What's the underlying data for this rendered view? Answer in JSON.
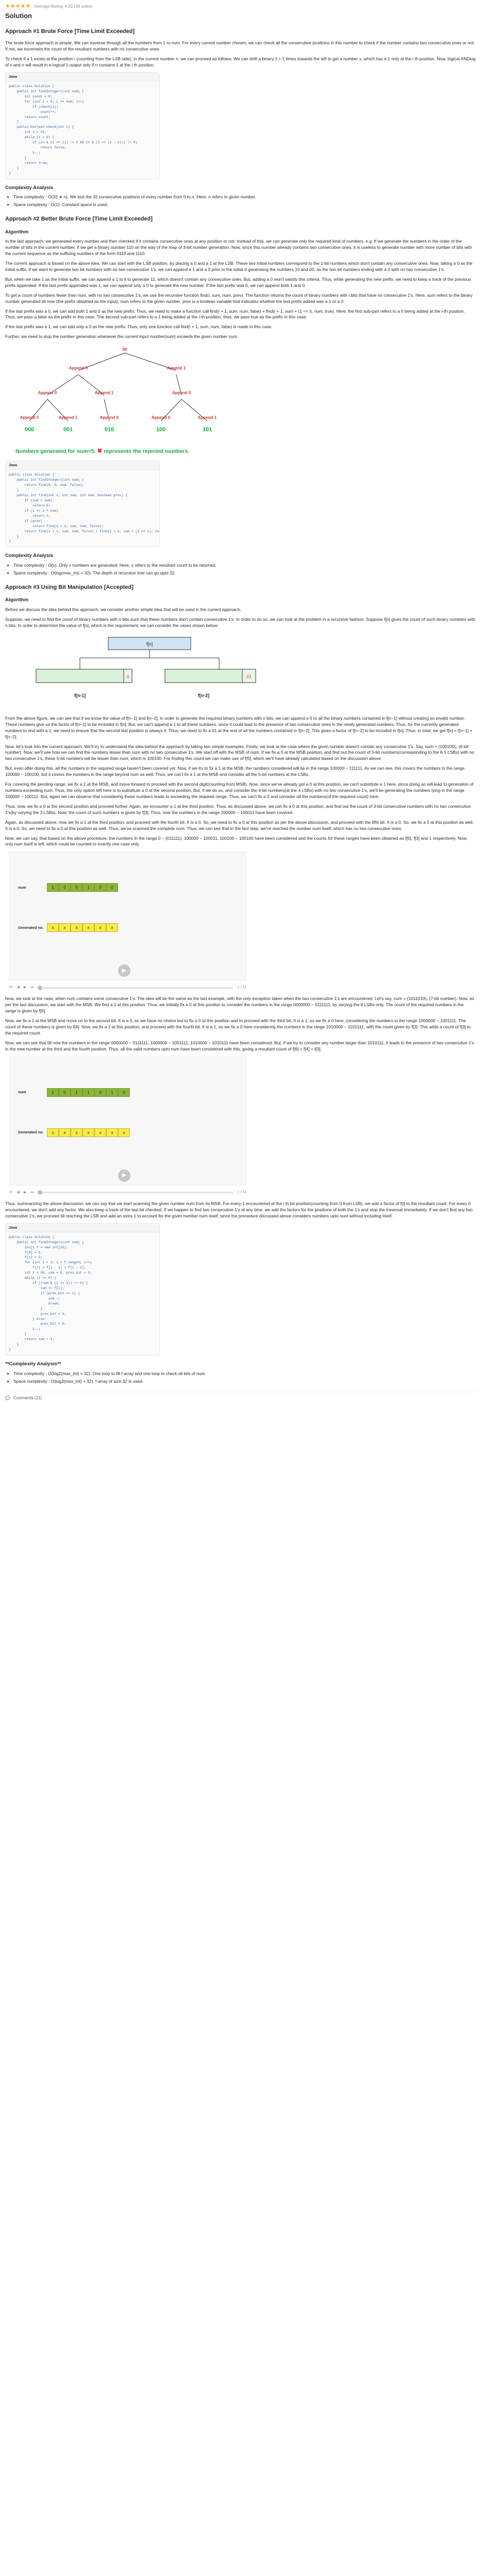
{
  "rating": {
    "stars": "★★★★★",
    "avg": "Average Rating: 4.82 (39 votes)"
  },
  "page_title": "Solution",
  "a1": {
    "title": "Approach #1 Brute Force [Time Limit Exceeded]",
    "p1": "The brute force approach is simple. We can traverse through all the numbers from 1 to num. For every current number chosen, we can check all the consecutive positions in this number to check if the number contains two consecutive ones or not. If not, we increment the count of the resultant numbers with no consecutive ones.",
    "p2": "To check if a 1 exists at the position i (counting from the LSB side), in the current number n, we can proceed as follows. We can shift a binary 1 i−1 times towards the left to get a number x, which has a 1 only at the i th position. Now, logical ANDing of x and n will result in a logical 1 output only if n contains 1 at the i th position.",
    "tabs": [
      "Java"
    ],
    "code": "public class Solution {\n    public int findIntegers(int num) {\n        int count = 0;\n        for (int i = 0; i <= num; i++)\n            if (check(i))\n                count++;\n        return count;\n    }\n    public boolean check(int n) {\n        int i = 31;\n        while (i > 0) {\n            if ((n & (1 << i)) != 0 && (n & (1 << (i - 1))) != 0)\n                return false;\n            i--;\n        }\n        return true;\n    }\n}",
    "cx_title": "Complexity Analysis",
    "cx": [
      "Time complexity : O(32 ∗ n). We test the 32 consecutive positions of every number from 0 to n. Here, n refers to given number.",
      "Space complexity : O(1). Constant space is used."
    ]
  },
  "a2": {
    "title": "Approach #2 Better Brute Force [Time Limit Exceeded]",
    "alg": "Algorithm",
    "p1": "In the last approach, we generated every number and then checked if it contains consecutive ones at any position or not. Instead of this, we can generate only the required kind of numbers. e.g. If we generate the numbers in the order of the number of bits in the current number, if we get a binary number 110 on the way of the map of 3-bit number generation. Now, since this number already contains two consecutive ones, it is useless to generate number with more number of bits with the current sequence as the suffixing numbers of the form 0110 and 1110.",
    "p2": "The current approach is based on the above idea. We can start with the LSB position, by placing a 0 and a 1 at the LSB. These two initial numbers correspond to the 1-bit numbers which don't contain any consecutive ones. Now, taking a 0 as the initial suffix, if we want to generate two bit numbers with no two consecutive 1's, we can append a 1 and a 0 prior to the initial 0 generating the numbers 10 and 00, as the two bit numbers ending with a 0 with no two consecutive 1's.",
    "p3": "But, when we take 1 as the initial suffix, we can append a 1 to it to generate 11, which doesn't contain any consecutive ones. But, adding a 0 won't satisfy this criteria. Thus, while generating the new prefix, we need to keep a track of the previous prefix appended. If the last prefix appended was 1, we can append only a 0 to generate the new number. If the last prefix was 0, we can append both 1 and 0.",
    "p4": "To get a count of numbers fewer than num, with no two consecutive 1's, we use the recursive function find(i, sum, num, prev). The function returns the count of binary numbers with i bits that have no consecutive 1's. Here, sum refers to the binary number generated till now (the prefix obtained as the input), num refers to the given number. prev is a boolean variable that indicates whether the last prefix added was a 1 or a 0.",
    "p5": "If the last prefix was a 0, we can add both 1 and 0 as the new prefix. Thus, we need to make a function call find(i + 1, sum, num, false) + find(i + 1, sum + (1 << i), num, true). Here, the first sub-part refers to a 0 being added at the i-th position. Thus, we pass a false as the prefix in this case. The second sub-part refers to a 1 being added at the i-th position, thus, we pass true as the prefix in this case.",
    "p6": "If the last prefix was a 1, we can add only a 0 as the new prefix. Thus, only one function call find(i + 1, sum, num, false) is made in this case.",
    "p7": "Further, we need to stop the number generation whenever the current input number(sum) exceeds the given number num.",
    "tree": {
      "root": "00",
      "l1": [
        "Append 0",
        "Append 1"
      ],
      "l2": [
        "Append 0",
        "Append 1",
        "Append 0"
      ],
      "l3": [
        "Append 0",
        "Append 1",
        "Append 0",
        "Append 0",
        "Append 1"
      ],
      "leaves": [
        "000",
        "001",
        "010",
        "100",
        "101"
      ]
    },
    "caption": "Numbers generated for num=5.",
    "caption_mark": "✖",
    "caption_tail": "represents the rejected numbers.",
    "tabs": [
      "Java"
    ],
    "code": "public class Solution {\n    public int findIntegers(int num) {\n        return find(0, 0, num, false);\n    }\n    public int find(int i, int sum, int num, boolean prev) {\n        if (sum > num)\n            return 0;\n        if (1 << i > num)\n            return 1;\n        if (prev)\n            return find(i + 1, sum, num, false);\n        return find(i + 1, sum, num, false) + find(i + 1, sum + (1 << i), num, true);\n    }\n}",
    "cx_title": "Complexity Analysis",
    "cx": [
      "Time complexity : O(x). Only x numbers are generated. Here, x refers to the resultant count to be returned.",
      "Space complexity : O(log(max_int) = 32). The depth of recursion tree can go upto 32."
    ]
  },
  "a3": {
    "title": "Approach #3 Using Bit Manipulation [Accepted]",
    "alg": "Algorithm",
    "p1": "Before we discuss the idea behind this approach, we consider another simple idea that will be used in the current approach.",
    "p2": "Suppose, we need to find the count of binary numbers with n bits such that these numbers don't contain consecutive 1's. In order to do so, we can look at the problem in a recursive fashion. Suppose f[n] gives the count of such binary numbers with n bits. In order to determine the value of f[n], which is the requirement, we can consider the cases shown below:",
    "split": {
      "top": "f[n]",
      "left": "f[n-1]",
      "right": "f[n-2]",
      "l_bit": "0",
      "r_bits": "01"
    },
    "p3": "From the above figure, we can see that if we know the value of f[n−1] and f[n−2], in order to generate the required binary numbers with n bits, we can append a 0 to all the binary numbers contained in f[n−1] without creating an invalid number. These numbers give us the factor of f[n−1] to be included in f[n]. But, we can't append a 1 to all these numbers, since it could lead to the presence of two consecutive ones in the newly generated numbers. Thus, for the currently generated numbers to end with a 1, we need to ensure that the second last position is always 0. Thus, we need to fix a 01 at the end of all the numbers contained in f[n−2]. This gives a factor of f[n−2] to be included in f[n]. Thus, in total, we get f[n] = f[n−1] + f[n−2].",
    "p4": "Now, let's look into the current approach. We'll try to understand the idea behind the approach by taking two simple examples. Firstly, we look at the case where the given number doesn't contain any consecutive 1's. Say, num = (100100)₂ (6-bit number). Now, we'll see how we can find the numbers lesser than num with no two consecutive 1's. We start off with the MSB of num. If we fix a 0 at the MSB position, and find out the count of 5-bit numbers(corresponding to the 6-1 LSBs) with no two consecutive 1's, these 5-bit numbers will be lesser than num, which is 100100. For finding this count we can make use of f[5], which we'll have already calculated based on the discussion above.",
    "p5": "But, even after doing this, all the numbers in the required range haven't been covered yet. Now, if we try to fix a 1 at the MSB, the numbers considered will lie in the range 100000 − 111111. As we can see, this covers the numbers in the range 100000 − 100100, but it covers the numbers in the range beyond num as well. Thus, we can't fix a 1 at the MSB and consider all the 5-bit numbers at the LSBs.",
    "p6": "For covering the pending range, we fix a 1 at the MSB, and move forward to proceed with the second digit(counting from MSB). Now, since we've already got a 0 at this position, we can't substitute a 1 here, since doing so will lead to generation of numbers exceeding num. Thus, the only option left here is to substitute a 0 at the second position. But, if we do so, and consider the 4-bit numbers(at the 4 LSBs) with no two consecutive 1's, we'll be generating the numbers lying in the range 100000 − 100111. But, again we can observe that considering these numbers leads to exceeding the required range. Thus, we can't fix a 0 and consider all the numbers(of the required count) here.",
    "p7": "Thus, now, we fix a 0 at the second position and proceed further. Again, we encounter a 1 at the third position. Thus, as discussed above, we can fix a 0 at this position, and find out the count of 3-bit consecutive numbers with no two consecutive 1's(by varying the 3 LSBs). Now, the count of such numbers is given by f[3]. Thus, now the numbers in the range 100000 − 100011 have been covered.",
    "p8": "Again, as discussed above, now we fix a 1 at the third position, and proceed with the fourth bit. It is a 0. So, we need to fix a 0 at this position as per the above discussion, and proceed with the fifth bit. It is a 0. So, we fix a 0 at this position as well. It is a 0. So, we need to fix a 0 at this position as well. Thus, we've scanned the complete num. Thus, we can see that in the last step, we've reached the number num itself, which has no two consecutive ones.",
    "p9": "Now, we can say, that based on the above procedure, the numbers in the range 0 − (011111), 100000 − 100011, 100100 − 100100 have been considered and the counts for these ranges have been obtained as f[5], f[3] and 1 respectively. Now, only num itself is left, which could be counted to exactly one case only.",
    "anim1": {
      "row1_label": "num",
      "row1": [
        "1",
        "0",
        "0",
        "1",
        "0",
        "0"
      ],
      "row2_label": "Generated no.",
      "row2": [
        "x",
        "x",
        "x",
        "x",
        "x",
        "x"
      ],
      "counter": "1 / 12"
    },
    "p10": "Now, we look at the case, when num contains some consecutive 1's. The idea will be the same as the last example, with the only exception taken when the two consecutive 1's are encountered. Let's say, num = (1011010)₂ (7-bit number). Now, as per the last discussion, we start with the MSB. We find a 1 at this position. Thus, we initially fix a 0 at this position to consider the numbers in the range 0000000 − 0111111, by varying the 6 LSBs only. The count of the required numbers in the range is given by f[6].",
    "p11": "Now, we fix a 1 at the MSB and move on to the second bit. It is a 0, so we have no choice but to fix a 0 at this position and to proceed with the third bit. It is a 1, so we fix a 0 here, considering the numbers in the range 1000000 − 1001111. The count of these numbers is given by f[4]. Now, we fix a 1 at this position, and proceed with the fourth bit. It is a 1, so we fix a 0 here considering the numbers in the range 1010000 − 1010111, with the count given by f[3]. This adds a count of f[3] to the required count.",
    "p12": "Now, we can see that till now the numbers in the range 0000000 − 0111111, 1000000 − 1001111, 1010000 − 1010111 have been considered. But, if we try to consider any number larger than 1010111, it leads to the presence of two consecutive 1's in the new number at the third and the fourth position. Thus, all the valid numbers upto num have been considered with this, giving a resultant count of f[6] + f[4] + f[3].",
    "anim2": {
      "row1_label": "num",
      "row1": [
        "1",
        "0",
        "1",
        "1",
        "0",
        "1",
        "0"
      ],
      "row2_label": "Generated no.",
      "row2": [
        "x",
        "x",
        "x",
        "x",
        "x",
        "x",
        "x"
      ],
      "counter": "1 / 14"
    },
    "p13": "Thus, summarizing the above discussion, we can say that we start scanning the given number num from its MSB. For every 1 encountered at the i th bit position(counting from 0 from LSB), we add a factor of f[i] to the resultant count. For every 0 encountered, we don't add any factor. We also keep a track of the last bit checked. If we happen to find two consecutive 1's at any time, we add the factors for the positions of both the 1's and stop the traversal immediately. If we don't find any two consecutive 1's, we proceed till reaching the LSB and add an extra 1 to account for the given number num itself, since the procedure discussed above considers numbers upto num without including itself.",
    "tabs": [
      "Java"
    ],
    "code": "public class Solution {\n    public int findIntegers(int num) {\n        int[] f = new int[32];\n        f[0] = 1;\n        f[1] = 2;\n        for (int i = 2; i < f.length; i++)\n            f[i] = f[i - 1] + f[i - 2];\n        int i = 30, sum = 0, prev_bit = 0;\n        while (i >= 0) {\n            if ((num & (1 << i)) != 0) {\n                sum += f[i];\n                if (prev_bit == 1) {\n                    sum--;\n                    break;\n                }\n                prev_bit = 1;\n            } else\n                prev_bit = 0;\n            i--;\n        }\n        return sum + 1;\n    }\n}",
    "cx_title": "**Complexity Analysis**",
    "cx": [
      "Time complexity : O(log2(max_int) = 32). One loop to fill f array and one loop to check all bits of num.",
      "Space complexity : O(log2(max_int) = 32). f array of size 32 is used."
    ]
  },
  "footer": {
    "comments": "Comments (21)"
  }
}
